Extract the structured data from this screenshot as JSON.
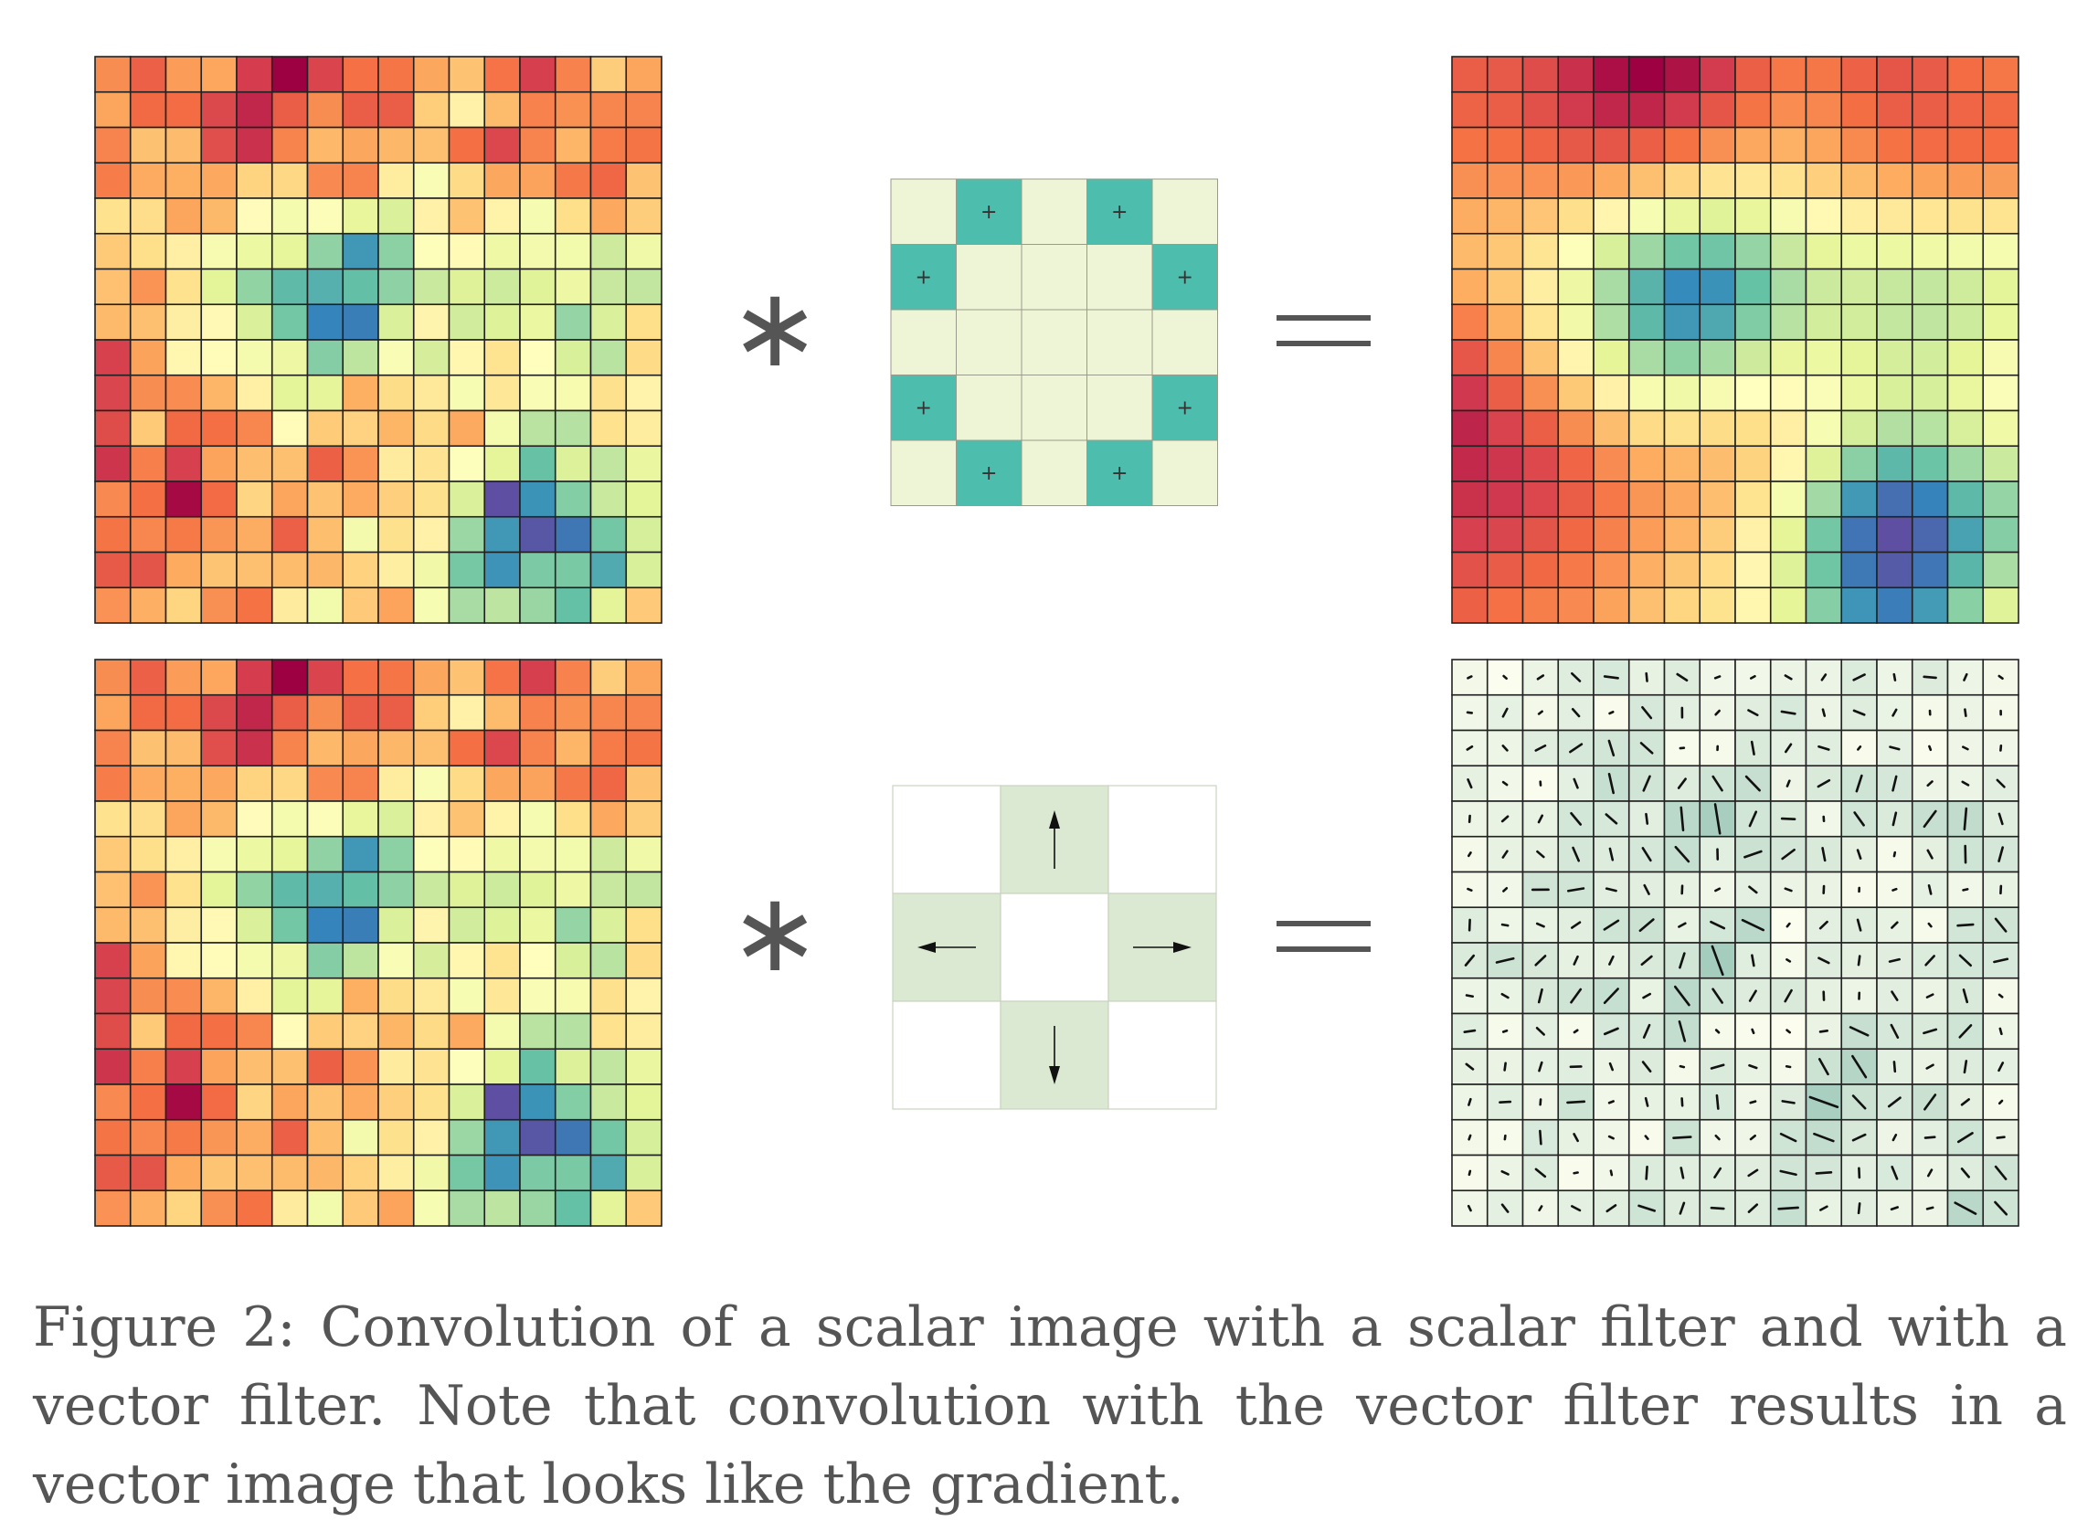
{
  "figure": {
    "caption": "Figure 2: Convolution of a scalar image with a scalar filter and with a vector filter. Note that convolution with the vector filter results in a vector image that looks like the gradient.",
    "operators": {
      "convolve": "∗",
      "equals": "="
    },
    "colormap": [
      "#5e4fa2",
      "#3288bd",
      "#66c2a5",
      "#abdda4",
      "#e6f598",
      "#ffffbf",
      "#fee08b",
      "#fdae61",
      "#f46d43",
      "#d53e4f",
      "#9e0142"
    ],
    "scalar_filter": {
      "grid_size": 5,
      "base_color": "#eef5d6",
      "active_color": "#4dbeae",
      "active_mark": "+",
      "active_cells": [
        [
          0,
          1
        ],
        [
          0,
          3
        ],
        [
          1,
          0
        ],
        [
          1,
          4
        ],
        [
          3,
          0
        ],
        [
          3,
          4
        ],
        [
          4,
          1
        ],
        [
          4,
          3
        ]
      ]
    },
    "vector_filter": {
      "grid_size": 3,
      "cell_color": "#dce9d2",
      "empty_color": "#ffffff",
      "arrows": [
        "up",
        "left",
        "right",
        "down"
      ]
    },
    "input_image": {
      "rows": 16,
      "cols": 16
    }
  }
}
